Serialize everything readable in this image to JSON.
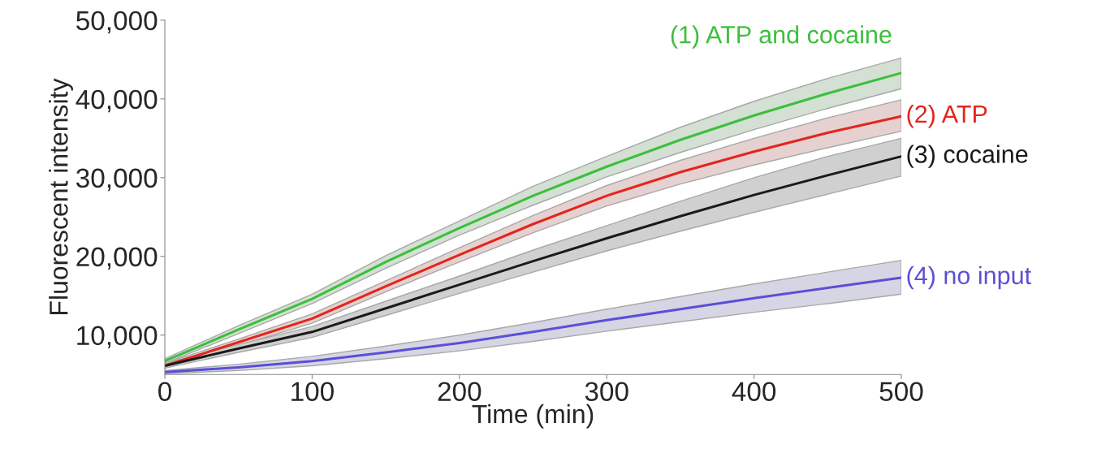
{
  "chart_data": {
    "type": "line",
    "xlabel": "Time (min)",
    "ylabel": "Fluorescent intensity",
    "x": [
      0,
      50,
      100,
      150,
      200,
      250,
      300,
      350,
      400,
      450,
      500
    ],
    "xlim": [
      0,
      500
    ],
    "xticks": [
      0,
      100,
      200,
      300,
      400,
      500
    ],
    "ylim": [
      5000,
      50000
    ],
    "yticks": [
      {
        "value": 10000,
        "label": "10,000"
      },
      {
        "value": 20000,
        "label": "20,000"
      },
      {
        "value": 30000,
        "label": "30,000"
      },
      {
        "value": 40000,
        "label": "40,000"
      },
      {
        "value": 50000,
        "label": "50,000"
      }
    ],
    "series": [
      {
        "name": "(1) ATP and cocaine",
        "color": "#3cbf3c",
        "values": [
          6700,
          10700,
          14600,
          19300,
          23600,
          27700,
          31400,
          34800,
          37900,
          40700,
          43300
        ],
        "lower": [
          6400,
          10200,
          14000,
          18500,
          22700,
          26500,
          30100,
          33200,
          36100,
          38800,
          41300
        ],
        "upper": [
          7000,
          11200,
          15200,
          20100,
          24500,
          28900,
          32700,
          36400,
          39700,
          42600,
          45200
        ]
      },
      {
        "name": "(2) ATP",
        "color": "#e2261c",
        "values": [
          6100,
          9100,
          12100,
          16200,
          20200,
          24100,
          27700,
          30700,
          33300,
          35700,
          37800
        ],
        "lower": [
          5800,
          8700,
          11500,
          15500,
          19300,
          23000,
          26400,
          29200,
          31600,
          33800,
          35900
        ],
        "upper": [
          6400,
          9500,
          12700,
          16900,
          21100,
          25200,
          29000,
          32200,
          35000,
          37600,
          39900
        ]
      },
      {
        "name": "(3) cocaine",
        "color": "#1a1a1a",
        "values": [
          6100,
          8300,
          10400,
          13400,
          16400,
          19400,
          22300,
          25100,
          27800,
          30300,
          32700
        ],
        "lower": [
          5800,
          7800,
          9700,
          12500,
          15300,
          18000,
          20700,
          23200,
          25600,
          27900,
          30200
        ],
        "upper": [
          6400,
          8800,
          11100,
          14300,
          17500,
          20800,
          23900,
          27000,
          30000,
          32700,
          35000
        ]
      },
      {
        "name": "(4) no input",
        "color": "#5b4fd6",
        "values": [
          5300,
          5900,
          6700,
          7800,
          9000,
          10400,
          11900,
          13300,
          14700,
          16000,
          17300
        ],
        "lower": [
          5100,
          5500,
          6100,
          7000,
          8000,
          9200,
          10500,
          11700,
          12900,
          14000,
          15200
        ],
        "upper": [
          5500,
          6300,
          7300,
          8600,
          10000,
          11600,
          13300,
          14900,
          16500,
          18000,
          19500
        ]
      }
    ]
  }
}
